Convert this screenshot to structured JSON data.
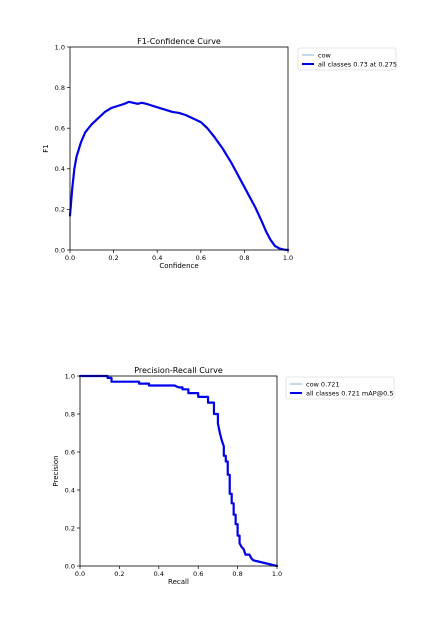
{
  "chart_data": [
    {
      "type": "line",
      "title": "F1-Confidence Curve",
      "xlabel": "Confidence",
      "ylabel": "F1",
      "xlim": [
        0,
        1
      ],
      "ylim": [
        0,
        1
      ],
      "xticks": [
        "0.0",
        "0.2",
        "0.4",
        "0.6",
        "0.8",
        "1.0"
      ],
      "yticks": [
        "0.0",
        "0.2",
        "0.4",
        "0.6",
        "0.8",
        "1.0"
      ],
      "grid": false,
      "legend_position": "outside-top-right",
      "series": [
        {
          "name": "cow",
          "color": "#87b8d6",
          "x": [
            0,
            0.01,
            0.02,
            0.03,
            0.05,
            0.07,
            0.1,
            0.13,
            0.16,
            0.19,
            0.22,
            0.25,
            0.27,
            0.29,
            0.31,
            0.33,
            0.35,
            0.38,
            0.41,
            0.44,
            0.47,
            0.5,
            0.53,
            0.56,
            0.6,
            0.63,
            0.66,
            0.7,
            0.74,
            0.78,
            0.82,
            0.85,
            0.88,
            0.9,
            0.92,
            0.94,
            0.96,
            0.98,
            1.0
          ],
          "y": [
            0.17,
            0.3,
            0.4,
            0.46,
            0.53,
            0.58,
            0.62,
            0.65,
            0.68,
            0.7,
            0.71,
            0.72,
            0.73,
            0.725,
            0.72,
            0.725,
            0.72,
            0.71,
            0.7,
            0.69,
            0.68,
            0.675,
            0.665,
            0.65,
            0.63,
            0.6,
            0.56,
            0.5,
            0.43,
            0.35,
            0.27,
            0.21,
            0.14,
            0.09,
            0.05,
            0.02,
            0.008,
            0.002,
            0.0
          ]
        },
        {
          "name": "all classes 0.73 at 0.275",
          "color": "#0000ee",
          "x": [
            0,
            0.01,
            0.02,
            0.03,
            0.05,
            0.07,
            0.1,
            0.13,
            0.16,
            0.19,
            0.22,
            0.25,
            0.27,
            0.29,
            0.31,
            0.33,
            0.35,
            0.38,
            0.41,
            0.44,
            0.47,
            0.5,
            0.53,
            0.56,
            0.6,
            0.63,
            0.66,
            0.7,
            0.74,
            0.78,
            0.82,
            0.85,
            0.88,
            0.9,
            0.92,
            0.94,
            0.96,
            0.98,
            1.0
          ],
          "y": [
            0.17,
            0.3,
            0.4,
            0.46,
            0.53,
            0.58,
            0.62,
            0.65,
            0.68,
            0.7,
            0.71,
            0.72,
            0.73,
            0.725,
            0.72,
            0.725,
            0.72,
            0.71,
            0.7,
            0.69,
            0.68,
            0.675,
            0.665,
            0.65,
            0.63,
            0.6,
            0.56,
            0.5,
            0.43,
            0.35,
            0.27,
            0.21,
            0.14,
            0.09,
            0.05,
            0.02,
            0.008,
            0.002,
            0.0
          ]
        }
      ]
    },
    {
      "type": "line",
      "title": "Precision-Recall Curve",
      "xlabel": "Recall",
      "ylabel": "Precision",
      "xlim": [
        0,
        1
      ],
      "ylim": [
        0,
        1
      ],
      "xticks": [
        "0.0",
        "0.2",
        "0.4",
        "0.6",
        "0.8",
        "1.0"
      ],
      "yticks": [
        "0.0",
        "0.2",
        "0.4",
        "0.6",
        "0.8",
        "1.0"
      ],
      "grid": false,
      "legend_position": "outside-top-right",
      "series": [
        {
          "name": "cow 0.721",
          "color": "#87b8d6",
          "x": [
            0,
            0.14,
            0.14,
            0.16,
            0.16,
            0.3,
            0.3,
            0.35,
            0.35,
            0.48,
            0.5,
            0.52,
            0.52,
            0.55,
            0.55,
            0.6,
            0.6,
            0.65,
            0.65,
            0.68,
            0.68,
            0.7,
            0.7,
            0.71,
            0.72,
            0.73,
            0.73,
            0.74,
            0.74,
            0.75,
            0.75,
            0.76,
            0.76,
            0.77,
            0.77,
            0.78,
            0.78,
            0.79,
            0.79,
            0.8,
            0.8,
            0.81,
            0.81,
            0.82,
            0.83,
            0.84,
            0.86,
            0.87,
            0.88,
            0.9,
            1.0
          ],
          "y": [
            1.0,
            1.0,
            0.99,
            0.99,
            0.97,
            0.97,
            0.96,
            0.96,
            0.95,
            0.95,
            0.94,
            0.94,
            0.93,
            0.93,
            0.91,
            0.91,
            0.89,
            0.89,
            0.86,
            0.86,
            0.8,
            0.8,
            0.75,
            0.7,
            0.66,
            0.63,
            0.58,
            0.58,
            0.55,
            0.55,
            0.48,
            0.48,
            0.38,
            0.38,
            0.33,
            0.33,
            0.27,
            0.27,
            0.22,
            0.22,
            0.16,
            0.16,
            0.12,
            0.1,
            0.09,
            0.06,
            0.06,
            0.04,
            0.03,
            0.025,
            0.0
          ]
        },
        {
          "name": "all classes 0.721 mAP@0.5",
          "color": "#0000ee",
          "x": [
            0,
            0.14,
            0.14,
            0.16,
            0.16,
            0.3,
            0.3,
            0.35,
            0.35,
            0.48,
            0.5,
            0.52,
            0.52,
            0.55,
            0.55,
            0.6,
            0.6,
            0.65,
            0.65,
            0.68,
            0.68,
            0.7,
            0.7,
            0.71,
            0.72,
            0.73,
            0.73,
            0.74,
            0.74,
            0.75,
            0.75,
            0.76,
            0.76,
            0.77,
            0.77,
            0.78,
            0.78,
            0.79,
            0.79,
            0.8,
            0.8,
            0.81,
            0.81,
            0.82,
            0.83,
            0.84,
            0.86,
            0.87,
            0.88,
            0.9,
            1.0
          ],
          "y": [
            1.0,
            1.0,
            0.99,
            0.99,
            0.97,
            0.97,
            0.96,
            0.96,
            0.95,
            0.95,
            0.94,
            0.94,
            0.93,
            0.93,
            0.91,
            0.91,
            0.89,
            0.89,
            0.86,
            0.86,
            0.8,
            0.8,
            0.75,
            0.7,
            0.66,
            0.63,
            0.58,
            0.58,
            0.55,
            0.55,
            0.48,
            0.48,
            0.38,
            0.38,
            0.33,
            0.33,
            0.27,
            0.27,
            0.22,
            0.22,
            0.16,
            0.16,
            0.12,
            0.1,
            0.09,
            0.06,
            0.06,
            0.04,
            0.03,
            0.025,
            0.0
          ]
        }
      ]
    }
  ]
}
